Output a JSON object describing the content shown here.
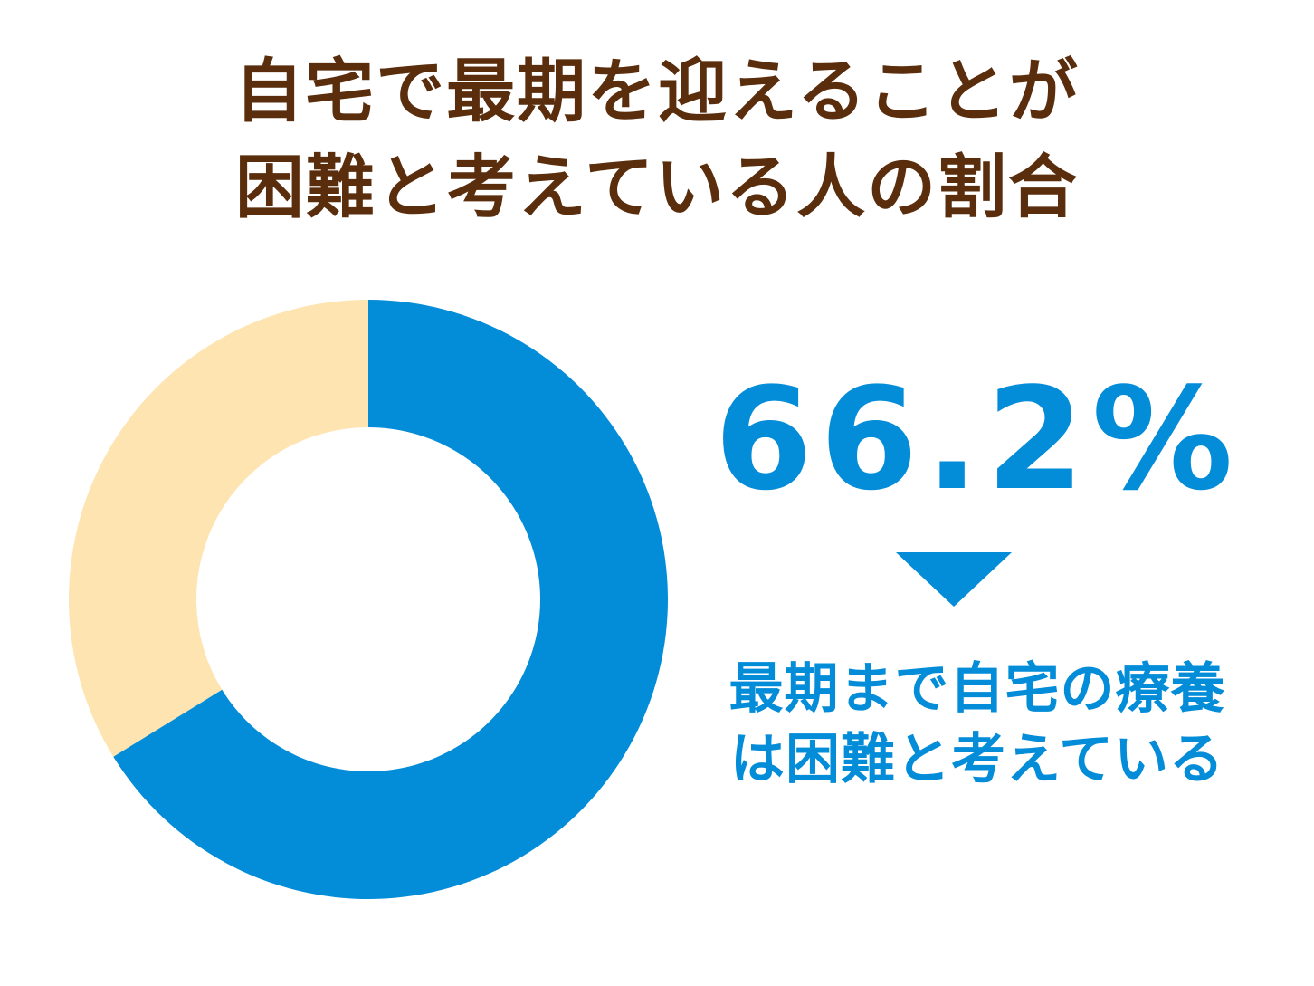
{
  "chart_data": {
    "type": "donut",
    "title": "自宅で最期を迎えることが\n困難と考えている人の割合",
    "categories": [
      "最期まで自宅の療養\nは困難と考えている",
      null
    ],
    "values": [
      66.2,
      33.8
    ],
    "value_labels": [
      "66.2%",
      null
    ],
    "colors": [
      "#038cd8",
      "#fde4b0"
    ]
  }
}
